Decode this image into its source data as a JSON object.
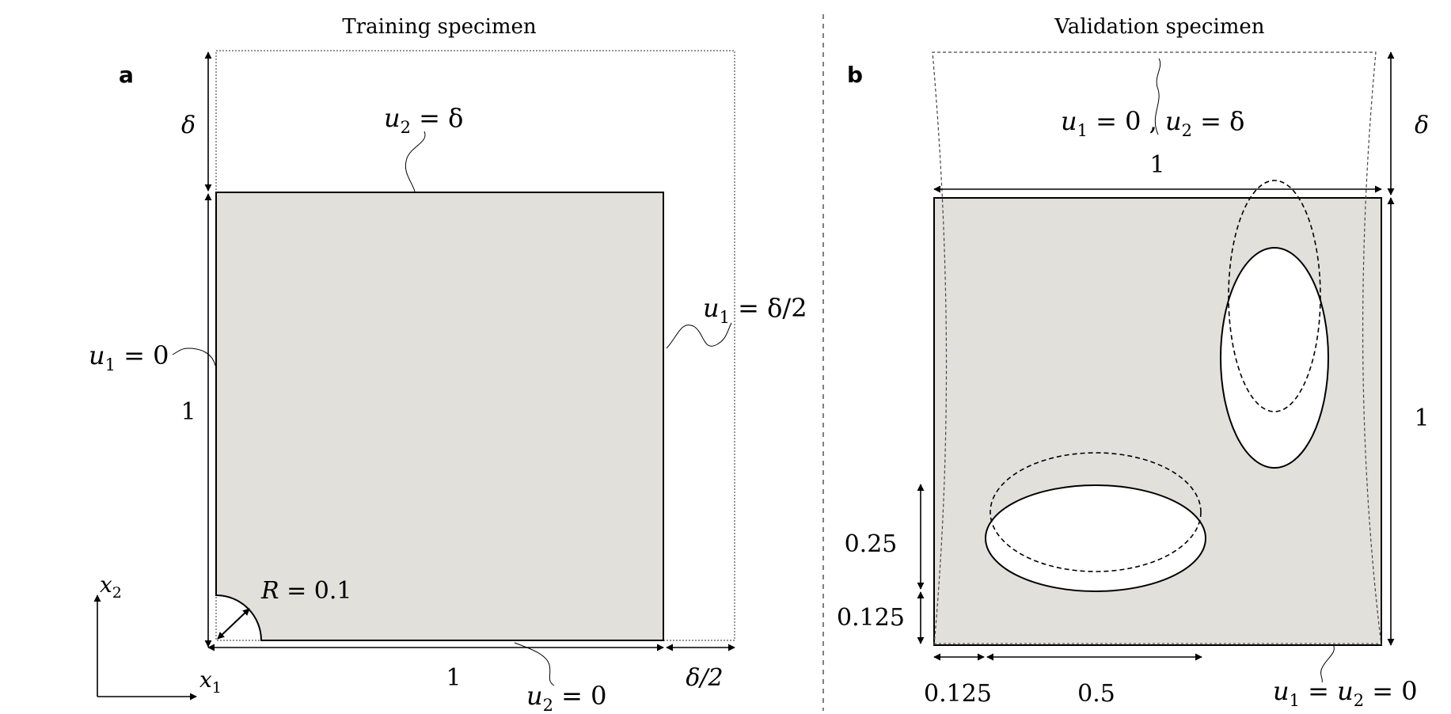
{
  "panel_a": {
    "title": "Training specimen",
    "letter": "a",
    "labels": {
      "delta_top": "δ",
      "top_bc_var": "u",
      "top_bc_sub": "2",
      "top_bc_rhs": " = δ",
      "right_bc_var": "u",
      "right_bc_sub": "1",
      "right_bc_rhs": " = δ/2",
      "left_bc_var": "u",
      "left_bc_sub": "1",
      "left_bc_rhs": " = 0",
      "height": "1",
      "width": "1",
      "bottom_bc_var": "u",
      "bottom_bc_sub": "2",
      "bottom_bc_rhs": " = 0",
      "delta_half": "δ/2",
      "radius_var": "R",
      "radius_rhs": " = 0.1",
      "axis_x_var": "x",
      "axis_x_sub": "1",
      "axis_y_var": "x",
      "axis_y_sub": "2"
    }
  },
  "panel_b": {
    "title": "Validation specimen",
    "letter": "b",
    "labels": {
      "top_bc_var1": "u",
      "top_bc_sub1": "1",
      "top_bc_mid": " = 0 , ",
      "top_bc_var2": "u",
      "top_bc_sub2": "2",
      "top_bc_rhs": " = δ",
      "delta_right": "δ",
      "width": "1",
      "height": "1",
      "dim_025": "0.25",
      "dim_0125_v": "0.125",
      "dim_0125_h": "0.125",
      "dim_05": "0.5",
      "bottom_bc_var1": "u",
      "bottom_bc_sub1": "1",
      "bottom_bc_mid": " = ",
      "bottom_bc_var2": "u",
      "bottom_bc_sub2": "2",
      "bottom_bc_rhs": " = 0"
    }
  },
  "colors": {
    "fill": "#e2e0db",
    "stroke": "#000000",
    "hole": "#ffffff"
  }
}
